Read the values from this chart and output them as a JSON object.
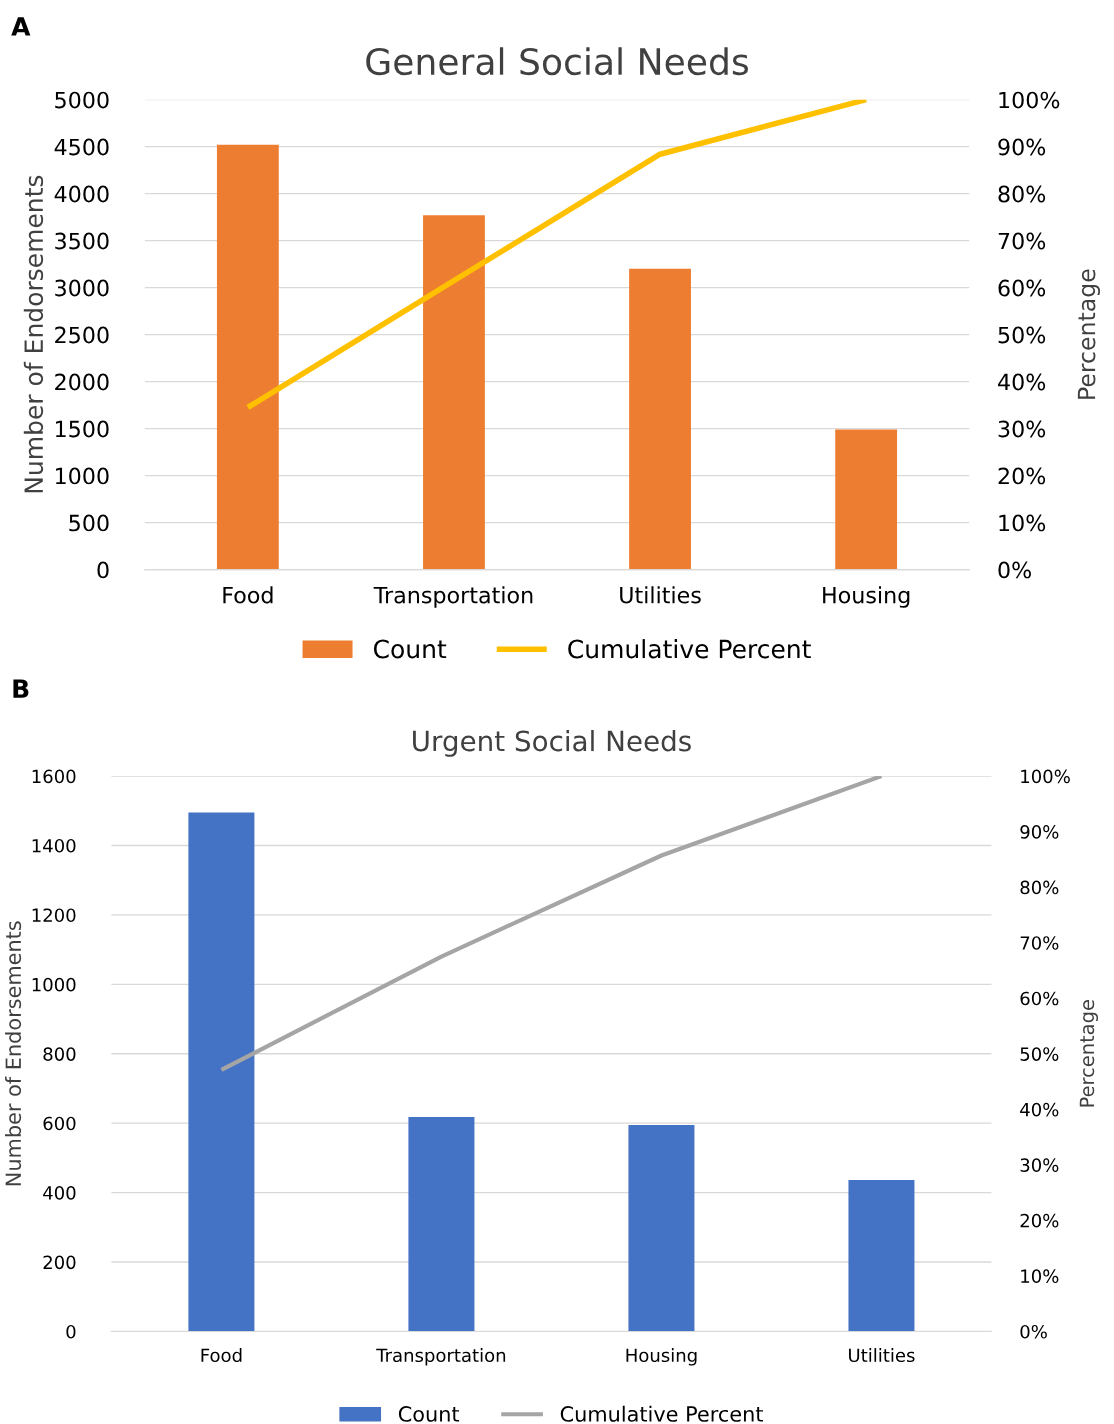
{
  "chart_data": [
    {
      "type": "bar",
      "title": "General Social Needs",
      "annotations": [
        "A"
      ],
      "categories": [
        "Food",
        "Transportation",
        "Utilities",
        "Housing"
      ],
      "ylabel": "Number of Endorsements",
      "y2label": "Percentage",
      "ylim": [
        0,
        5000
      ],
      "yticks": [
        0,
        500,
        1000,
        1500,
        2000,
        2500,
        3000,
        3500,
        4000,
        4500,
        5000
      ],
      "y2lim": [
        0,
        100
      ],
      "y2ticks": [
        {
          "value": 0,
          "label": "0%"
        },
        {
          "value": 10,
          "label": "10%"
        },
        {
          "value": 20,
          "label": "20%"
        },
        {
          "value": 30,
          "label": "30%"
        },
        {
          "value": 40,
          "label": "40%"
        },
        {
          "value": 50,
          "label": "50%"
        },
        {
          "value": 60,
          "label": "60%"
        },
        {
          "value": 70,
          "label": "70%"
        },
        {
          "value": 80,
          "label": "80%"
        },
        {
          "value": 90,
          "label": "90%"
        },
        {
          "value": 100,
          "label": "100%"
        }
      ],
      "grid": "y",
      "legend": "bottom",
      "series": [
        {
          "name": "Count",
          "color": "#ed7d31",
          "values": [
            4520,
            3770,
            3200,
            1490
          ]
        },
        {
          "name": "Cumulative Percent",
          "type": "line",
          "axis": "y2",
          "color": "#ffc000",
          "values": [
            34.5,
            61.5,
            88.4,
            100
          ]
        }
      ]
    },
    {
      "type": "bar",
      "title": "Urgent Social Needs",
      "annotations": [
        "B"
      ],
      "categories": [
        "Food",
        "Transportation",
        "Housing",
        "Utilities"
      ],
      "ylabel": "Number of Endorsements",
      "y2label": "Percentage",
      "ylim": [
        0,
        1600
      ],
      "yticks": [
        0,
        200,
        400,
        600,
        800,
        1000,
        1200,
        1400,
        1600
      ],
      "y2lim": [
        0,
        100
      ],
      "y2ticks": [
        {
          "value": 0,
          "label": "0%"
        },
        {
          "value": 10,
          "label": "10%"
        },
        {
          "value": 20,
          "label": "20%"
        },
        {
          "value": 30,
          "label": "30%"
        },
        {
          "value": 40,
          "label": "40%"
        },
        {
          "value": 50,
          "label": "50%"
        },
        {
          "value": 60,
          "label": "60%"
        },
        {
          "value": 70,
          "label": "70%"
        },
        {
          "value": 80,
          "label": "80%"
        },
        {
          "value": 90,
          "label": "90%"
        },
        {
          "value": 100,
          "label": "100%"
        }
      ],
      "grid": "y",
      "legend": "bottom",
      "series": [
        {
          "name": "Count",
          "color": "#4472c4",
          "values": [
            1495,
            618,
            595,
            436
          ]
        },
        {
          "name": "Cumulative Percent",
          "type": "line",
          "axis": "y2",
          "color": "#a5a5a5",
          "values": [
            47.1,
            67.5,
            85.7,
            100
          ]
        }
      ]
    }
  ]
}
